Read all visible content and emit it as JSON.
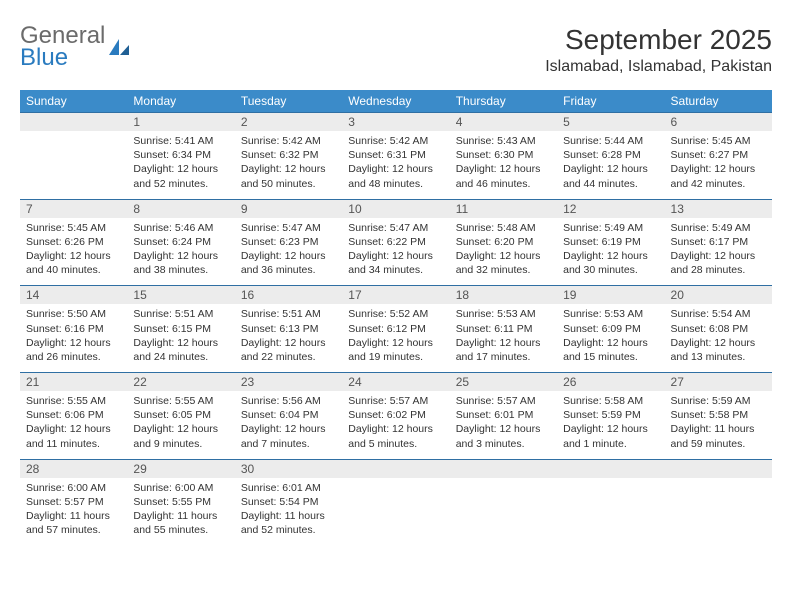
{
  "logo": {
    "general": "General",
    "blue": "Blue"
  },
  "title": "September 2025",
  "location": "Islamabad, Islamabad, Pakistan",
  "colors": {
    "header_bg": "#3b8bc9",
    "header_text": "#ffffff",
    "week_border": "#2f6fa3",
    "daynum_bg": "#ececec",
    "logo_general": "#6b6b6b",
    "logo_blue": "#2a7bbf"
  },
  "typography": {
    "title_fontsize": 28,
    "location_fontsize": 16,
    "header_fontsize": 12,
    "cell_fontsize": 10.5
  },
  "day_headers": [
    "Sunday",
    "Monday",
    "Tuesday",
    "Wednesday",
    "Thursday",
    "Friday",
    "Saturday"
  ],
  "weeks": [
    [
      {
        "num": "",
        "sunrise": "",
        "sunset": "",
        "daylight": ""
      },
      {
        "num": "1",
        "sunrise": "Sunrise: 5:41 AM",
        "sunset": "Sunset: 6:34 PM",
        "daylight": "Daylight: 12 hours and 52 minutes."
      },
      {
        "num": "2",
        "sunrise": "Sunrise: 5:42 AM",
        "sunset": "Sunset: 6:32 PM",
        "daylight": "Daylight: 12 hours and 50 minutes."
      },
      {
        "num": "3",
        "sunrise": "Sunrise: 5:42 AM",
        "sunset": "Sunset: 6:31 PM",
        "daylight": "Daylight: 12 hours and 48 minutes."
      },
      {
        "num": "4",
        "sunrise": "Sunrise: 5:43 AM",
        "sunset": "Sunset: 6:30 PM",
        "daylight": "Daylight: 12 hours and 46 minutes."
      },
      {
        "num": "5",
        "sunrise": "Sunrise: 5:44 AM",
        "sunset": "Sunset: 6:28 PM",
        "daylight": "Daylight: 12 hours and 44 minutes."
      },
      {
        "num": "6",
        "sunrise": "Sunrise: 5:45 AM",
        "sunset": "Sunset: 6:27 PM",
        "daylight": "Daylight: 12 hours and 42 minutes."
      }
    ],
    [
      {
        "num": "7",
        "sunrise": "Sunrise: 5:45 AM",
        "sunset": "Sunset: 6:26 PM",
        "daylight": "Daylight: 12 hours and 40 minutes."
      },
      {
        "num": "8",
        "sunrise": "Sunrise: 5:46 AM",
        "sunset": "Sunset: 6:24 PM",
        "daylight": "Daylight: 12 hours and 38 minutes."
      },
      {
        "num": "9",
        "sunrise": "Sunrise: 5:47 AM",
        "sunset": "Sunset: 6:23 PM",
        "daylight": "Daylight: 12 hours and 36 minutes."
      },
      {
        "num": "10",
        "sunrise": "Sunrise: 5:47 AM",
        "sunset": "Sunset: 6:22 PM",
        "daylight": "Daylight: 12 hours and 34 minutes."
      },
      {
        "num": "11",
        "sunrise": "Sunrise: 5:48 AM",
        "sunset": "Sunset: 6:20 PM",
        "daylight": "Daylight: 12 hours and 32 minutes."
      },
      {
        "num": "12",
        "sunrise": "Sunrise: 5:49 AM",
        "sunset": "Sunset: 6:19 PM",
        "daylight": "Daylight: 12 hours and 30 minutes."
      },
      {
        "num": "13",
        "sunrise": "Sunrise: 5:49 AM",
        "sunset": "Sunset: 6:17 PM",
        "daylight": "Daylight: 12 hours and 28 minutes."
      }
    ],
    [
      {
        "num": "14",
        "sunrise": "Sunrise: 5:50 AM",
        "sunset": "Sunset: 6:16 PM",
        "daylight": "Daylight: 12 hours and 26 minutes."
      },
      {
        "num": "15",
        "sunrise": "Sunrise: 5:51 AM",
        "sunset": "Sunset: 6:15 PM",
        "daylight": "Daylight: 12 hours and 24 minutes."
      },
      {
        "num": "16",
        "sunrise": "Sunrise: 5:51 AM",
        "sunset": "Sunset: 6:13 PM",
        "daylight": "Daylight: 12 hours and 22 minutes."
      },
      {
        "num": "17",
        "sunrise": "Sunrise: 5:52 AM",
        "sunset": "Sunset: 6:12 PM",
        "daylight": "Daylight: 12 hours and 19 minutes."
      },
      {
        "num": "18",
        "sunrise": "Sunrise: 5:53 AM",
        "sunset": "Sunset: 6:11 PM",
        "daylight": "Daylight: 12 hours and 17 minutes."
      },
      {
        "num": "19",
        "sunrise": "Sunrise: 5:53 AM",
        "sunset": "Sunset: 6:09 PM",
        "daylight": "Daylight: 12 hours and 15 minutes."
      },
      {
        "num": "20",
        "sunrise": "Sunrise: 5:54 AM",
        "sunset": "Sunset: 6:08 PM",
        "daylight": "Daylight: 12 hours and 13 minutes."
      }
    ],
    [
      {
        "num": "21",
        "sunrise": "Sunrise: 5:55 AM",
        "sunset": "Sunset: 6:06 PM",
        "daylight": "Daylight: 12 hours and 11 minutes."
      },
      {
        "num": "22",
        "sunrise": "Sunrise: 5:55 AM",
        "sunset": "Sunset: 6:05 PM",
        "daylight": "Daylight: 12 hours and 9 minutes."
      },
      {
        "num": "23",
        "sunrise": "Sunrise: 5:56 AM",
        "sunset": "Sunset: 6:04 PM",
        "daylight": "Daylight: 12 hours and 7 minutes."
      },
      {
        "num": "24",
        "sunrise": "Sunrise: 5:57 AM",
        "sunset": "Sunset: 6:02 PM",
        "daylight": "Daylight: 12 hours and 5 minutes."
      },
      {
        "num": "25",
        "sunrise": "Sunrise: 5:57 AM",
        "sunset": "Sunset: 6:01 PM",
        "daylight": "Daylight: 12 hours and 3 minutes."
      },
      {
        "num": "26",
        "sunrise": "Sunrise: 5:58 AM",
        "sunset": "Sunset: 5:59 PM",
        "daylight": "Daylight: 12 hours and 1 minute."
      },
      {
        "num": "27",
        "sunrise": "Sunrise: 5:59 AM",
        "sunset": "Sunset: 5:58 PM",
        "daylight": "Daylight: 11 hours and 59 minutes."
      }
    ],
    [
      {
        "num": "28",
        "sunrise": "Sunrise: 6:00 AM",
        "sunset": "Sunset: 5:57 PM",
        "daylight": "Daylight: 11 hours and 57 minutes."
      },
      {
        "num": "29",
        "sunrise": "Sunrise: 6:00 AM",
        "sunset": "Sunset: 5:55 PM",
        "daylight": "Daylight: 11 hours and 55 minutes."
      },
      {
        "num": "30",
        "sunrise": "Sunrise: 6:01 AM",
        "sunset": "Sunset: 5:54 PM",
        "daylight": "Daylight: 11 hours and 52 minutes."
      },
      {
        "num": "",
        "sunrise": "",
        "sunset": "",
        "daylight": ""
      },
      {
        "num": "",
        "sunrise": "",
        "sunset": "",
        "daylight": ""
      },
      {
        "num": "",
        "sunrise": "",
        "sunset": "",
        "daylight": ""
      },
      {
        "num": "",
        "sunrise": "",
        "sunset": "",
        "daylight": ""
      }
    ]
  ]
}
